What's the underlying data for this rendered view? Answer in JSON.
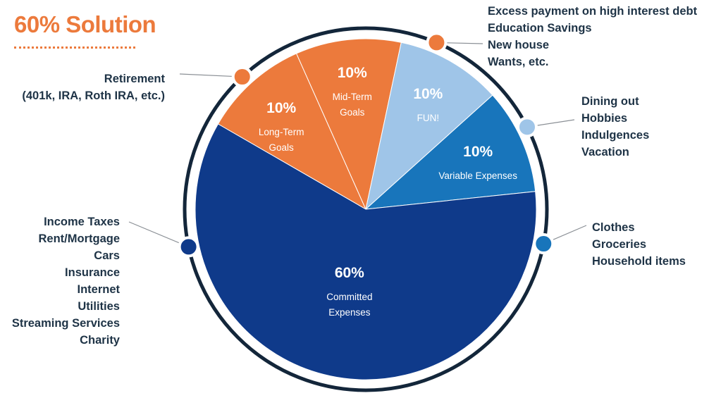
{
  "title": "60% Solution",
  "colors": {
    "orange": "#ec7a3c",
    "light_blue": "#9fc5e8",
    "mid_blue": "#1875bb",
    "navy": "#0f3a8a",
    "ring": "#13263a",
    "text": "#1e3346"
  },
  "chart_data": {
    "type": "pie",
    "title": "60% Solution",
    "slices": [
      {
        "id": "long-term",
        "value": 10,
        "percent_label": "10%",
        "label_lines": [
          "Long-Term",
          "Goals"
        ],
        "color": "#ec7a3c"
      },
      {
        "id": "mid-term",
        "value": 10,
        "percent_label": "10%",
        "label_lines": [
          "Mid-Term",
          "Goals"
        ],
        "color": "#ec7a3c"
      },
      {
        "id": "fun",
        "value": 10,
        "percent_label": "10%",
        "label_lines": [
          "FUN!"
        ],
        "color": "#9fc5e8"
      },
      {
        "id": "variable",
        "value": 10,
        "percent_label": "10%",
        "label_lines": [
          "Variable Expenses"
        ],
        "color": "#1875bb"
      },
      {
        "id": "committed",
        "value": 60,
        "percent_label": "60%",
        "label_lines": [
          "Committed",
          "Expenses"
        ],
        "color": "#0f3a8a"
      }
    ]
  },
  "annotations": {
    "retirement": {
      "lines": [
        "Retirement",
        "(401k, IRA, Roth IRA, etc.)"
      ]
    },
    "midterm": {
      "lines": [
        "Excess payment on high interest debt",
        "Education Savings",
        "New house",
        "Wants, etc."
      ]
    },
    "fun": {
      "lines": [
        "Dining out",
        "Hobbies",
        "Indulgences",
        "Vacation"
      ]
    },
    "variable": {
      "lines": [
        "Clothes",
        "Groceries",
        "Household items"
      ]
    },
    "committed": {
      "lines": [
        "Income Taxes",
        "Rent/Mortgage",
        "Cars",
        "Insurance",
        "Internet",
        "Utilities",
        "Streaming Services",
        "Charity"
      ]
    }
  }
}
